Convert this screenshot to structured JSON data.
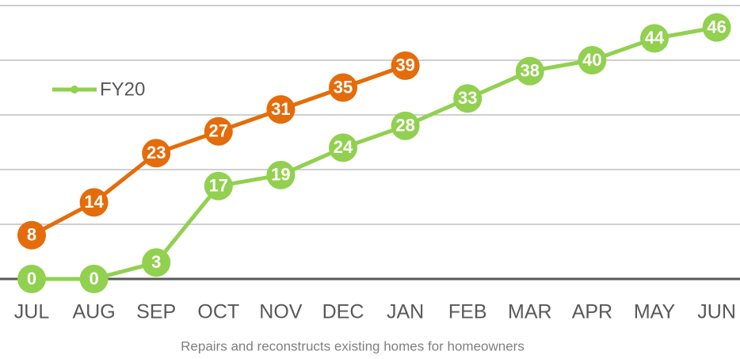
{
  "chart_data": {
    "type": "line",
    "xlabel": "Repairs and reconstructs existing homes for homeowners",
    "categories": [
      "JUL",
      "AUG",
      "SEP",
      "OCT",
      "NOV",
      "DEC",
      "JAN",
      "FEB",
      "MAR",
      "APR",
      "MAY",
      "JUN"
    ],
    "series": [
      {
        "color": "#e46c0a",
        "values": [
          8,
          14,
          23,
          27,
          31,
          35,
          39,
          null,
          null,
          null,
          null,
          null
        ]
      },
      {
        "name": "FY20",
        "color": "#92d050",
        "values": [
          0,
          0,
          3,
          17,
          19,
          24,
          28,
          33,
          38,
          40,
          44,
          46
        ]
      }
    ],
    "ylim": [
      0,
      50
    ],
    "yticks": [
      0,
      10,
      20,
      30,
      40,
      50
    ],
    "grid": true,
    "legend": "upper left"
  }
}
